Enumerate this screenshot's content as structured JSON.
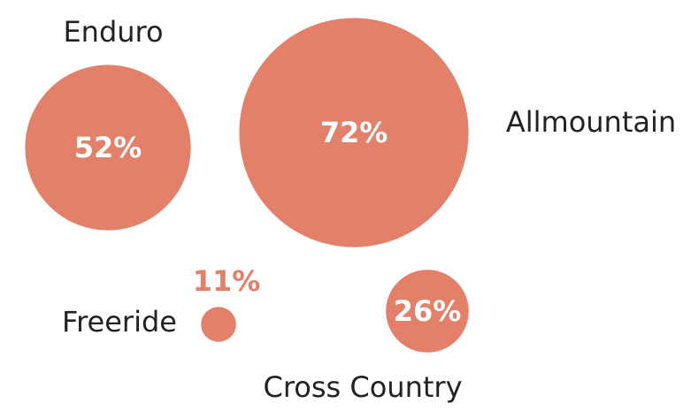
{
  "chart_data": {
    "type": "bubble",
    "categories": [
      "Enduro",
      "Allmountain",
      "Freeride",
      "Cross Country"
    ],
    "values": [
      52,
      72,
      11,
      26
    ],
    "value_labels": [
      "52%",
      "72%",
      "11%",
      "26%"
    ],
    "color": "#e2806a"
  }
}
